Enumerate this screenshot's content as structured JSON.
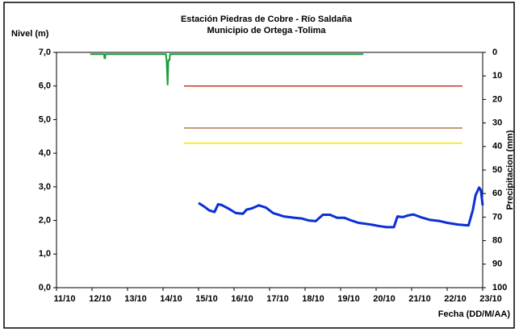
{
  "chart_data": {
    "type": "line",
    "title": "Estación Piedras de Cobre  - Río Saldaña",
    "subtitle": "Municipio de Ortega -Tolima",
    "ylabel": "Nivel (m)",
    "y2label": "Precipitacion (mm)",
    "xlabel": "Fecha (DD/M/AA)",
    "xlim": [
      11,
      23
    ],
    "xticks": [
      {
        "value": 11,
        "label": "11/10"
      },
      {
        "value": 12,
        "label": "12/10"
      },
      {
        "value": 13,
        "label": "13/10"
      },
      {
        "value": 14,
        "label": "14/10"
      },
      {
        "value": 15,
        "label": "15/10"
      },
      {
        "value": 16,
        "label": "16/10"
      },
      {
        "value": 17,
        "label": "17/10"
      },
      {
        "value": 18,
        "label": "18/10"
      },
      {
        "value": 19,
        "label": "19/10"
      },
      {
        "value": 20,
        "label": "20/10"
      },
      {
        "value": 21,
        "label": "21/10"
      },
      {
        "value": 22,
        "label": "22/10"
      },
      {
        "value": 23,
        "label": "23/10"
      }
    ],
    "ylim": [
      0,
      7
    ],
    "yticks": [
      {
        "value": 0,
        "label": "0,0"
      },
      {
        "value": 1,
        "label": "1,0"
      },
      {
        "value": 2,
        "label": "2,0"
      },
      {
        "value": 3,
        "label": "3,0"
      },
      {
        "value": 4,
        "label": "4,0"
      },
      {
        "value": 5,
        "label": "5,0"
      },
      {
        "value": 6,
        "label": "6,0"
      },
      {
        "value": 7,
        "label": "7,0"
      }
    ],
    "y2lim": [
      0,
      100
    ],
    "y2_inverted": true,
    "y2ticks": [
      0,
      10,
      20,
      30,
      40,
      50,
      60,
      70,
      80,
      90,
      100
    ],
    "hlines": [
      {
        "value": 6,
        "color": "#c0392b",
        "x": [
          14.59,
          22.43
        ]
      },
      {
        "value": 4.75,
        "color": "#b07a50",
        "x": [
          14.59,
          22.43
        ]
      },
      {
        "value": 4.3,
        "color": "#f2e600",
        "x": [
          14.59,
          22.43
        ]
      }
    ],
    "series": [
      {
        "color": "#0a2fd6",
        "width": 3,
        "x": [
          15.0,
          15.15,
          15.3,
          15.45,
          15.55,
          15.65,
          15.85,
          16.05,
          16.25,
          16.35,
          16.5,
          16.7,
          16.9,
          17.1,
          17.4,
          17.7,
          17.9,
          18.1,
          18.3,
          18.5,
          18.7,
          18.9,
          19.1,
          19.3,
          19.5,
          19.7,
          19.9,
          20.1,
          20.3,
          20.5,
          20.6,
          20.75,
          20.9,
          21.05,
          21.25,
          21.5,
          21.8,
          22.0,
          22.3,
          22.6,
          22.72,
          22.8,
          22.9,
          22.95,
          23.0
        ],
        "values": [
          2.52,
          2.42,
          2.3,
          2.25,
          2.48,
          2.46,
          2.35,
          2.22,
          2.2,
          2.32,
          2.36,
          2.45,
          2.38,
          2.22,
          2.12,
          2.08,
          2.06,
          2.0,
          1.98,
          2.17,
          2.17,
          2.08,
          2.08,
          2.0,
          1.93,
          1.9,
          1.87,
          1.83,
          1.8,
          1.8,
          2.12,
          2.1,
          2.15,
          2.18,
          2.1,
          2.02,
          1.98,
          1.93,
          1.88,
          1.85,
          2.3,
          2.75,
          2.98,
          2.9,
          2.45
        ]
      },
      {
        "color": "#1a9e3a",
        "width": 2,
        "axis": "y2",
        "x": [
          11.95,
          12.34,
          12.35,
          12.37,
          12.38,
          14.08,
          14.1,
          14.13,
          14.15,
          14.18,
          14.2,
          19.64
        ],
        "values": [
          0.8,
          0.8,
          2.5,
          2.5,
          0.8,
          0.8,
          3.4,
          13.7,
          3.4,
          3.4,
          0.8,
          0.8
        ]
      }
    ]
  }
}
